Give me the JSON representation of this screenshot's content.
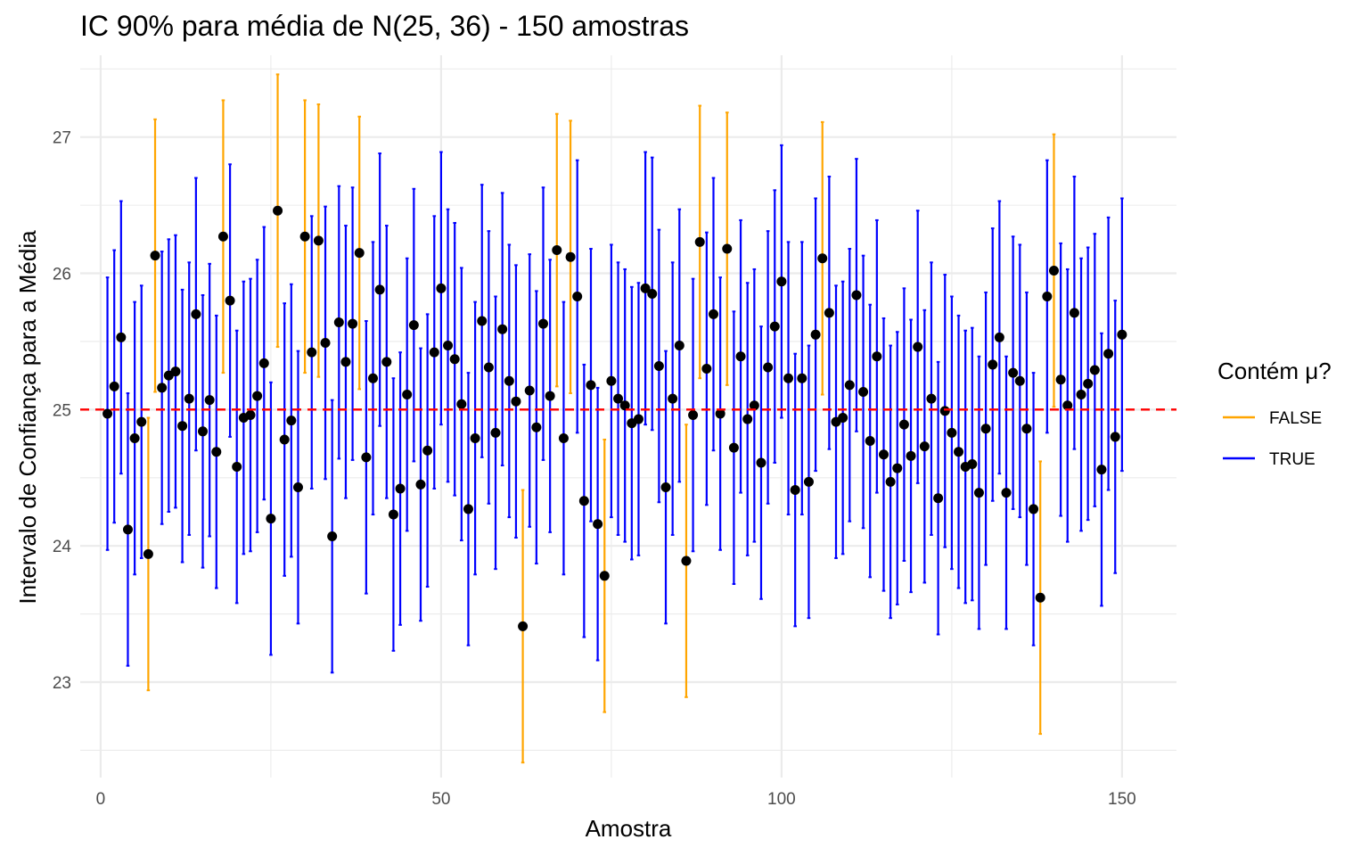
{
  "chart_data": {
    "type": "errorbar",
    "title": "IC 90% para média de N(25, 36) - 150 amostras",
    "xlabel": "Amostra",
    "ylabel": "Intervalo de Confiança para a Média",
    "xlim": [
      -3,
      158
    ],
    "ylim": [
      22.3,
      27.6
    ],
    "x_ticks": [
      0,
      50,
      100,
      150
    ],
    "y_ticks": [
      23,
      24,
      25,
      26,
      27
    ],
    "reference_line": {
      "y": 25,
      "style": "dashed",
      "color": "#ff0000"
    },
    "half_width": 1.0,
    "grid": true,
    "legend": {
      "title": "Contém μ?",
      "position": "right",
      "entries": [
        {
          "label": "FALSE",
          "color": "#ffa500"
        },
        {
          "label": "TRUE",
          "color": "#0000ff"
        }
      ]
    },
    "point_color": "#000000",
    "samples": [
      1,
      2,
      3,
      4,
      5,
      6,
      7,
      8,
      9,
      10,
      11,
      12,
      13,
      14,
      15,
      16,
      17,
      18,
      19,
      20,
      21,
      22,
      23,
      24,
      25,
      26,
      27,
      28,
      29,
      30,
      31,
      32,
      33,
      34,
      35,
      36,
      37,
      38,
      39,
      40,
      41,
      42,
      43,
      44,
      45,
      46,
      47,
      48,
      49,
      50,
      51,
      52,
      53,
      54,
      55,
      56,
      57,
      58,
      59,
      60,
      61,
      62,
      63,
      64,
      65,
      66,
      67,
      68,
      69,
      70,
      71,
      72,
      73,
      74,
      75,
      76,
      77,
      78,
      79,
      80,
      81,
      82,
      83,
      84,
      85,
      86,
      87,
      88,
      89,
      90,
      91,
      92,
      93,
      94,
      95,
      96,
      97,
      98,
      99,
      100,
      101,
      102,
      103,
      104,
      105,
      106,
      107,
      108,
      109,
      110,
      111,
      112,
      113,
      114,
      115,
      116,
      117,
      118,
      119,
      120,
      121,
      122,
      123,
      124,
      125,
      126,
      127,
      128,
      129,
      130,
      131,
      132,
      133,
      134,
      135,
      136,
      137,
      138,
      139,
      140,
      141,
      142,
      143,
      144,
      145,
      146,
      147,
      148,
      149,
      150
    ],
    "means": [
      24.97,
      25.17,
      25.53,
      24.12,
      24.79,
      24.91,
      23.94,
      26.13,
      25.16,
      25.25,
      25.28,
      24.88,
      25.08,
      25.7,
      24.84,
      25.07,
      24.69,
      26.27,
      25.8,
      24.58,
      24.94,
      24.96,
      25.1,
      25.34,
      24.2,
      26.46,
      24.78,
      24.92,
      24.43,
      26.27,
      25.42,
      26.24,
      25.49,
      24.07,
      25.64,
      25.35,
      25.63,
      26.15,
      24.65,
      25.23,
      25.88,
      25.35,
      24.23,
      24.42,
      25.11,
      25.62,
      24.45,
      24.7,
      25.42,
      25.89,
      25.47,
      25.37,
      25.04,
      24.27,
      24.79,
      25.65,
      25.31,
      24.83,
      25.59,
      25.21,
      25.06,
      23.41,
      25.14,
      24.87,
      25.63,
      25.1,
      26.17,
      24.79,
      26.12,
      25.83,
      24.33,
      25.18,
      24.16,
      23.78,
      25.21,
      25.08,
      25.03,
      24.9,
      24.93,
      25.89,
      25.85,
      25.32,
      24.43,
      25.08,
      25.47,
      23.89,
      24.96,
      26.23,
      25.3,
      25.7,
      24.97,
      26.18,
      24.72,
      25.39,
      24.93,
      25.03,
      24.61,
      25.31,
      25.61,
      25.94,
      25.23,
      24.41,
      25.23,
      24.47,
      25.55,
      26.11,
      25.71,
      24.91,
      24.94,
      25.18,
      25.84,
      25.13,
      24.77,
      25.39,
      24.67,
      24.47,
      24.57,
      24.89,
      24.66,
      25.46,
      24.73,
      25.08,
      24.35,
      24.99,
      24.83,
      24.69,
      24.58,
      24.6,
      24.39,
      24.86,
      25.33,
      25.53,
      24.39,
      25.27,
      25.21,
      24.86,
      24.27,
      23.62,
      25.83,
      26.02,
      25.22,
      25.03,
      25.71,
      25.11,
      25.19,
      25.29,
      24.56,
      25.41,
      24.8,
      25.55
    ],
    "contains_mu": [
      true,
      true,
      true,
      true,
      true,
      true,
      false,
      false,
      true,
      true,
      true,
      true,
      true,
      true,
      true,
      true,
      true,
      false,
      true,
      true,
      true,
      true,
      true,
      true,
      true,
      false,
      true,
      true,
      true,
      false,
      true,
      false,
      true,
      true,
      true,
      true,
      true,
      false,
      true,
      true,
      true,
      true,
      true,
      true,
      true,
      true,
      true,
      true,
      true,
      true,
      true,
      true,
      true,
      true,
      true,
      true,
      true,
      true,
      true,
      true,
      true,
      false,
      true,
      true,
      true,
      true,
      false,
      true,
      false,
      true,
      true,
      true,
      true,
      false,
      true,
      true,
      true,
      true,
      true,
      true,
      true,
      true,
      true,
      true,
      true,
      false,
      true,
      false,
      true,
      true,
      true,
      false,
      true,
      true,
      true,
      true,
      true,
      true,
      true,
      true,
      true,
      true,
      true,
      true,
      true,
      false,
      true,
      true,
      true,
      true,
      true,
      true,
      true,
      true,
      true,
      true,
      true,
      true,
      true,
      true,
      true,
      true,
      true,
      true,
      true,
      true,
      true,
      true,
      true,
      true,
      true,
      true,
      true,
      true,
      true,
      true,
      true,
      false,
      true,
      false,
      true,
      true,
      true,
      true,
      true,
      true,
      true,
      true,
      true,
      true
    ]
  }
}
